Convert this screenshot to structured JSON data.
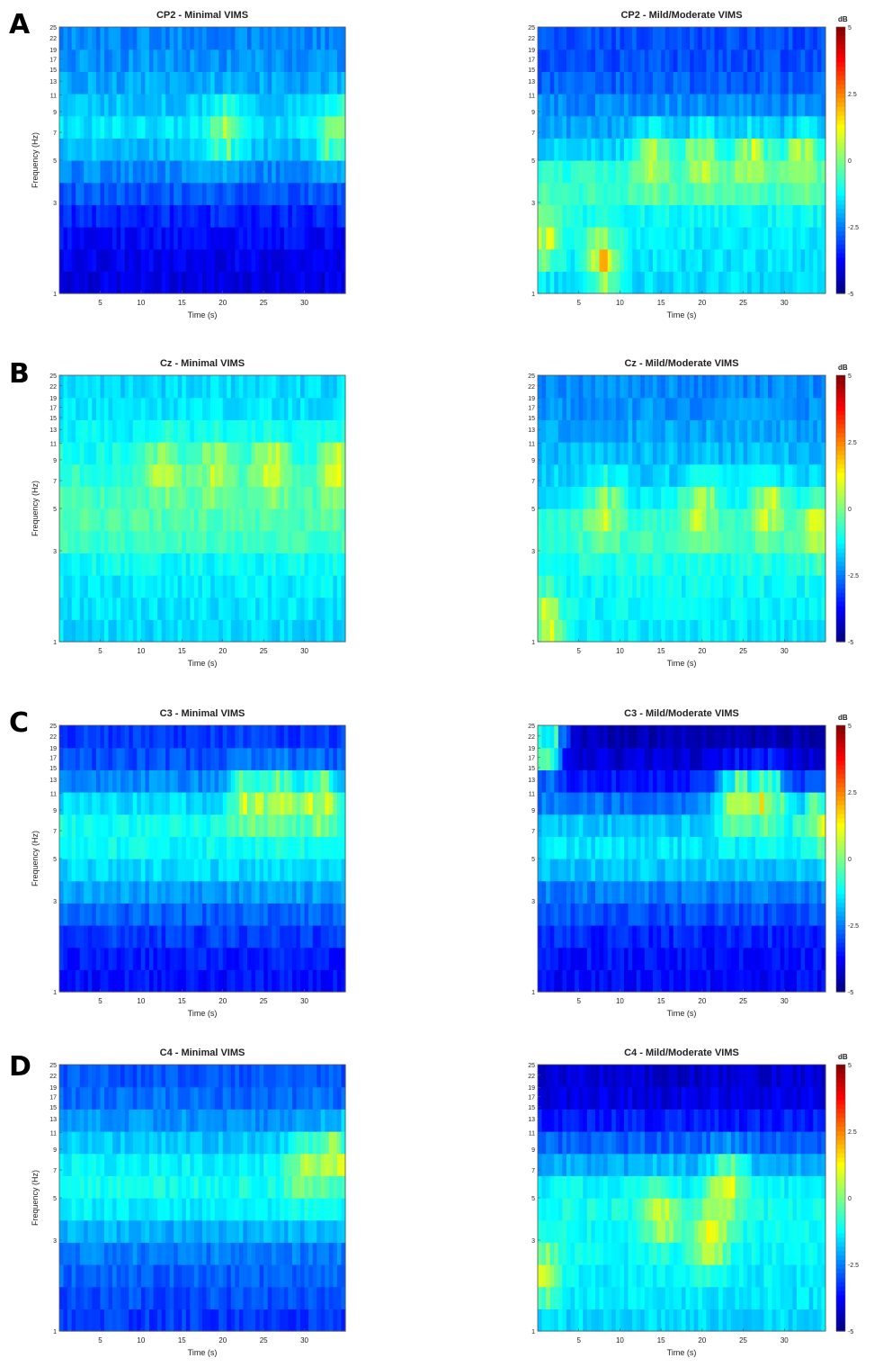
{
  "colormap": "jet",
  "chart_data": [
    {
      "row": "A",
      "type": "heatmap",
      "title": "CP2 - Minimal VIMS",
      "xlabel": "Time (s)",
      "ylabel": "Frequency (Hz)",
      "xticks": [
        "5",
        "10",
        "15",
        "20",
        "25",
        "30"
      ],
      "yticks": [
        "1",
        "3",
        "5",
        "7",
        "9",
        "11",
        "13",
        "15",
        "17",
        "19",
        "22",
        "25"
      ],
      "xlim": [
        0,
        35
      ],
      "ylim": [
        1,
        25
      ],
      "y_scale": "log",
      "band_profile_db": [
        -4.0,
        -3.9,
        -3.7,
        -3.4,
        -2.9,
        -2.4,
        -1.9,
        -1.5,
        -1.8,
        -2.1,
        -2.3,
        -2.4
      ],
      "hotspots": [
        {
          "t": 20,
          "f": 7,
          "db": 0.6
        },
        {
          "t": 34,
          "f": 7,
          "db": 0.8
        }
      ]
    },
    {
      "row": "A",
      "type": "heatmap",
      "title": "CP2 - Mild/Moderate VIMS",
      "xlabel": "Time (s)",
      "ylabel": "",
      "xticks": [
        "5",
        "10",
        "15",
        "20",
        "25",
        "30"
      ],
      "yticks": [
        "1",
        "3",
        "5",
        "7",
        "9",
        "11",
        "13",
        "15",
        "17",
        "19",
        "22",
        "25"
      ],
      "xlim": [
        0,
        35
      ],
      "ylim": [
        1,
        25
      ],
      "y_scale": "log",
      "band_profile_db": [
        -1.6,
        -1.5,
        -1.4,
        -1.2,
        -0.7,
        -0.9,
        -1.7,
        -2.1,
        -2.4,
        -2.8,
        -3.0,
        -3.0
      ],
      "hotspots": [
        {
          "t": 0.5,
          "f": 2,
          "db": 1.2
        },
        {
          "t": 8,
          "f": 1.5,
          "db": 1.4
        },
        {
          "t": 14,
          "f": 5,
          "db": 0.8
        },
        {
          "t": 20,
          "f": 5,
          "db": 0.9
        },
        {
          "t": 26,
          "f": 5,
          "db": 1.0
        },
        {
          "t": 32,
          "f": 5,
          "db": 1.0
        }
      ]
    },
    {
      "row": "B",
      "type": "heatmap",
      "title": "Cz - Minimal VIMS",
      "xlabel": "Time (s)",
      "ylabel": "Frequency (Hz)",
      "xticks": [
        "5",
        "10",
        "15",
        "20",
        "25",
        "30"
      ],
      "yticks": [
        "1",
        "3",
        "5",
        "7",
        "9",
        "11",
        "13",
        "15",
        "17",
        "19",
        "22",
        "25"
      ],
      "xlim": [
        0,
        35
      ],
      "ylim": [
        1,
        25
      ],
      "y_scale": "log",
      "band_profile_db": [
        -1.6,
        -1.5,
        -1.4,
        -1.2,
        -0.7,
        -0.5,
        -0.6,
        -0.8,
        -1.1,
        -1.3,
        -1.5,
        -1.6
      ],
      "hotspots": [
        {
          "t": 13,
          "f": 8,
          "db": 0.8
        },
        {
          "t": 19,
          "f": 8,
          "db": 0.8
        },
        {
          "t": 26,
          "f": 8,
          "db": 1.3
        },
        {
          "t": 34,
          "f": 8,
          "db": 1.2
        }
      ]
    },
    {
      "row": "B",
      "type": "heatmap",
      "title": "Cz - Mild/Moderate VIMS",
      "xlabel": "Time (s)",
      "ylabel": "",
      "xticks": [
        "5",
        "10",
        "15",
        "20",
        "25",
        "30"
      ],
      "yticks": [
        "1",
        "3",
        "5",
        "7",
        "9",
        "11",
        "13",
        "15",
        "17",
        "19",
        "22",
        "25"
      ],
      "xlim": [
        0,
        35
      ],
      "ylim": [
        1,
        25
      ],
      "y_scale": "log",
      "band_profile_db": [
        -1.4,
        -1.3,
        -1.2,
        -1.0,
        -0.7,
        -0.9,
        -1.4,
        -1.7,
        -1.9,
        -2.1,
        -2.3,
        -2.4
      ],
      "hotspots": [
        {
          "t": 0.8,
          "f": 1.3,
          "db": 1.2
        },
        {
          "t": 8,
          "f": 5,
          "db": 0.8
        },
        {
          "t": 20,
          "f": 5,
          "db": 0.9
        },
        {
          "t": 28,
          "f": 5,
          "db": 1.0
        },
        {
          "t": 34,
          "f": 4,
          "db": 1.0
        }
      ]
    },
    {
      "row": "C",
      "type": "heatmap",
      "title": "C3 - Minimal VIMS",
      "xlabel": "Time (s)",
      "ylabel": "Frequency (Hz)",
      "xticks": [
        "5",
        "10",
        "15",
        "20",
        "25",
        "30"
      ],
      "yticks": [
        "1",
        "3",
        "5",
        "7",
        "9",
        "11",
        "13",
        "15",
        "17",
        "19",
        "22",
        "25"
      ],
      "xlim": [
        0,
        35
      ],
      "ylim": [
        1,
        25
      ],
      "y_scale": "log",
      "band_profile_db": [
        -3.6,
        -3.5,
        -3.2,
        -2.8,
        -2.2,
        -1.6,
        -1.2,
        -1.1,
        -1.6,
        -2.4,
        -3.0,
        -3.2
      ],
      "hotspots": [
        {
          "t": 23,
          "f": 10,
          "db": 0.8
        },
        {
          "t": 27,
          "f": 10,
          "db": 1.0
        },
        {
          "t": 32,
          "f": 10,
          "db": 1.2
        }
      ]
    },
    {
      "row": "C",
      "type": "heatmap",
      "title": "C3 - Mild/Moderate VIMS",
      "xlabel": "Time (s)",
      "ylabel": "",
      "xticks": [
        "5",
        "10",
        "15",
        "20",
        "25",
        "30"
      ],
      "yticks": [
        "1",
        "3",
        "5",
        "7",
        "9",
        "11",
        "13",
        "15",
        "17",
        "19",
        "22",
        "25"
      ],
      "xlim": [
        0,
        35
      ],
      "ylim": [
        1,
        25
      ],
      "y_scale": "log",
      "band_profile_db": [
        -3.7,
        -3.6,
        -3.4,
        -3.0,
        -2.5,
        -1.8,
        -1.5,
        -1.8,
        -2.6,
        -3.5,
        -4.2,
        -4.5
      ],
      "hotspots": [
        {
          "t": 1,
          "f": 20,
          "db": 0.5
        },
        {
          "t": 24,
          "f": 10,
          "db": 1.2
        },
        {
          "t": 28,
          "f": 10,
          "db": 1.6
        },
        {
          "t": 34,
          "f": 8,
          "db": 1.0
        }
      ]
    },
    {
      "row": "D",
      "type": "heatmap",
      "title": "C4 - Minimal VIMS",
      "xlabel": "Time (s)",
      "ylabel": "Frequency (Hz)",
      "xticks": [
        "5",
        "10",
        "15",
        "20",
        "25",
        "30"
      ],
      "yticks": [
        "1",
        "3",
        "5",
        "7",
        "9",
        "11",
        "13",
        "15",
        "17",
        "19",
        "22",
        "25"
      ],
      "xlim": [
        0,
        35
      ],
      "ylim": [
        1,
        25
      ],
      "y_scale": "log",
      "band_profile_db": [
        -3.2,
        -3.0,
        -2.8,
        -2.5,
        -2.0,
        -1.4,
        -1.1,
        -1.3,
        -1.8,
        -2.3,
        -2.7,
        -2.9
      ],
      "hotspots": [
        {
          "t": 30,
          "f": 7,
          "db": 0.5
        },
        {
          "t": 34,
          "f": 8,
          "db": 0.8
        }
      ]
    },
    {
      "row": "D",
      "type": "heatmap",
      "title": "C4 - Mild/Moderate VIMS",
      "xlabel": "Time (s)",
      "ylabel": "",
      "xticks": [
        "5",
        "10",
        "15",
        "20",
        "25",
        "30"
      ],
      "yticks": [
        "1",
        "3",
        "5",
        "7",
        "9",
        "11",
        "13",
        "15",
        "17",
        "19",
        "22",
        "25"
      ],
      "xlim": [
        0,
        35
      ],
      "ylim": [
        1,
        25
      ],
      "y_scale": "log",
      "band_profile_db": [
        -1.6,
        -1.5,
        -1.4,
        -1.3,
        -1.2,
        -1.1,
        -1.3,
        -2.0,
        -2.8,
        -3.5,
        -4.0,
        -4.2
      ],
      "hotspots": [
        {
          "t": 0.8,
          "f": 2,
          "db": 0.8
        },
        {
          "t": 15,
          "f": 4,
          "db": 0.8
        },
        {
          "t": 21,
          "f": 3,
          "db": 1.3
        },
        {
          "t": 23,
          "f": 6,
          "db": 0.9
        }
      ]
    }
  ],
  "colorbars": [
    {
      "row": "A",
      "unit": "dB",
      "ticks": [
        "5",
        "2.5",
        "0",
        "-2.5",
        "-5"
      ],
      "range": [
        -5,
        5
      ]
    },
    {
      "row": "B",
      "unit": "dB",
      "ticks": [
        "5",
        "2.5",
        "0",
        "-2.5",
        "-5"
      ],
      "range": [
        -5,
        5
      ]
    },
    {
      "row": "C",
      "unit": "dB",
      "ticks": [
        "5",
        "2.5",
        "0",
        "-2.5",
        "-5"
      ],
      "range": [
        -5,
        5
      ]
    },
    {
      "row": "D",
      "unit": "dB",
      "ticks": [
        "5",
        "2.5",
        "0",
        "-2.5",
        "-5"
      ],
      "range": [
        -5,
        5
      ]
    }
  ],
  "rows": [
    "A",
    "B",
    "C",
    "D"
  ]
}
